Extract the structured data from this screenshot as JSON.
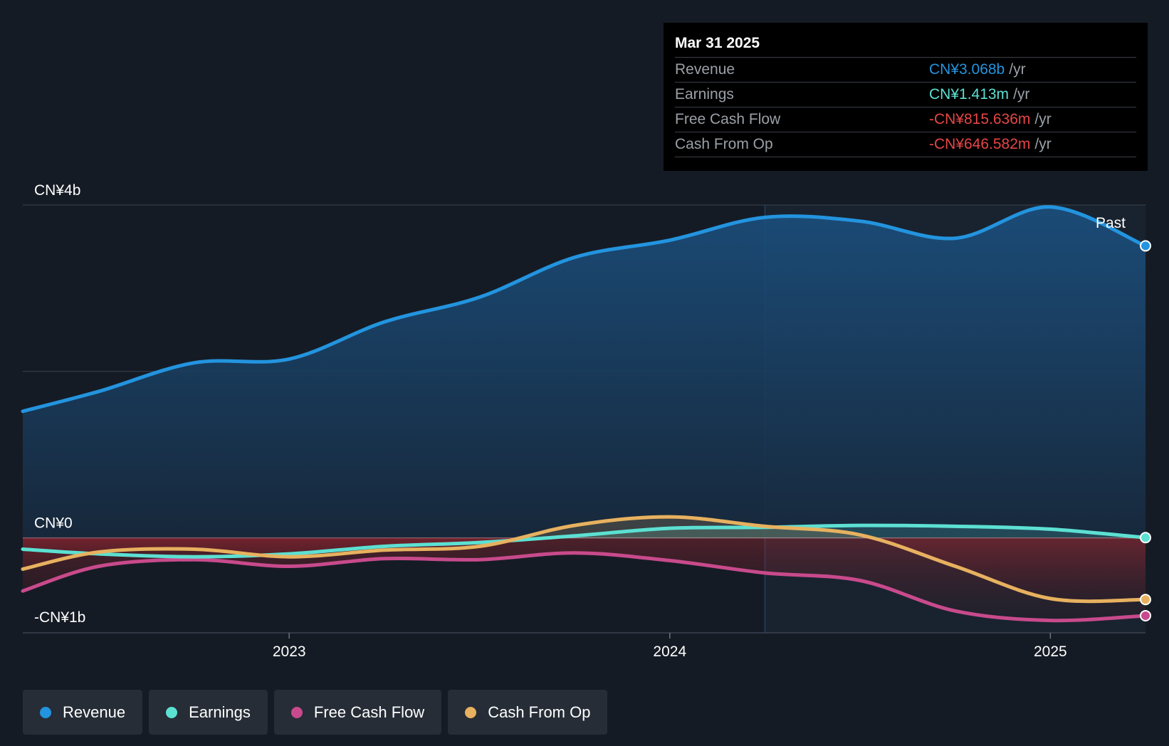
{
  "tooltip": {
    "date": "Mar 31 2025",
    "rows": [
      {
        "label": "Revenue",
        "value": "CN¥3.068b",
        "unit": "/yr",
        "color": "#2394df"
      },
      {
        "label": "Earnings",
        "value": "CN¥1.413m",
        "unit": "/yr",
        "color": "#5ce0d2"
      },
      {
        "label": "Free Cash Flow",
        "value": "-CN¥815.636m",
        "unit": "/yr",
        "color": "#e64646"
      },
      {
        "label": "Cash From Op",
        "value": "-CN¥646.582m",
        "unit": "/yr",
        "color": "#e64646"
      }
    ]
  },
  "legend": [
    {
      "label": "Revenue",
      "color": "#2394df"
    },
    {
      "label": "Earnings",
      "color": "#5ce0d2"
    },
    {
      "label": "Free Cash Flow",
      "color": "#c84a8c"
    },
    {
      "label": "Cash From Op",
      "color": "#e7b15f"
    }
  ],
  "chart_data": {
    "type": "line",
    "title": "",
    "y_unit": "CN¥ billions",
    "ylim": [
      -1.0,
      3.5
    ],
    "xlim": [
      2022.3,
      2025.25
    ],
    "y_tick_labels": [
      {
        "value": 3.5,
        "label": "CN¥4b"
      },
      {
        "value": 0,
        "label": "CN¥0"
      },
      {
        "value": -1.0,
        "label": "-CN¥1b"
      }
    ],
    "x_ticks": [
      {
        "value": 2023.0,
        "label": "2023"
      },
      {
        "value": 2024.0,
        "label": "2024"
      },
      {
        "value": 2025.0,
        "label": "2025"
      }
    ],
    "past_label": "Past",
    "past_start": 2024.25,
    "series": [
      {
        "name": "Revenue",
        "color": "#2394df",
        "x": [
          2022.25,
          2022.5,
          2022.75,
          2023.0,
          2023.25,
          2023.5,
          2023.75,
          2024.0,
          2024.25,
          2024.5,
          2024.75,
          2025.0,
          2025.25
        ],
        "values": [
          1.33,
          1.54,
          1.84,
          1.88,
          2.27,
          2.53,
          2.95,
          3.13,
          3.37,
          3.33,
          3.15,
          3.48,
          3.07
        ]
      },
      {
        "name": "Earnings",
        "color": "#5ce0d2",
        "x": [
          2022.25,
          2022.5,
          2022.75,
          2023.0,
          2023.25,
          2023.5,
          2023.75,
          2024.0,
          2024.25,
          2024.5,
          2024.75,
          2025.0,
          2025.25
        ],
        "values": [
          -0.12,
          -0.17,
          -0.2,
          -0.17,
          -0.09,
          -0.05,
          0.02,
          0.1,
          0.11,
          0.13,
          0.12,
          0.09,
          0.001
        ]
      },
      {
        "name": "Free Cash Flow",
        "color": "#c84a8c",
        "x": [
          2022.25,
          2022.5,
          2022.75,
          2023.0,
          2023.25,
          2023.5,
          2023.75,
          2024.0,
          2024.25,
          2024.5,
          2024.75,
          2025.0,
          2025.25
        ],
        "values": [
          -0.56,
          -0.3,
          -0.23,
          -0.3,
          -0.22,
          -0.23,
          -0.16,
          -0.24,
          -0.37,
          -0.45,
          -0.77,
          -0.87,
          -0.82
        ]
      },
      {
        "name": "Cash From Op",
        "color": "#e7b15f",
        "x": [
          2022.25,
          2022.5,
          2022.75,
          2023.0,
          2023.25,
          2023.5,
          2023.75,
          2024.0,
          2024.25,
          2024.5,
          2024.75,
          2025.0,
          2025.25
        ],
        "values": [
          -0.33,
          -0.15,
          -0.12,
          -0.2,
          -0.13,
          -0.09,
          0.13,
          0.22,
          0.12,
          0.03,
          -0.3,
          -0.64,
          -0.65
        ]
      }
    ]
  }
}
